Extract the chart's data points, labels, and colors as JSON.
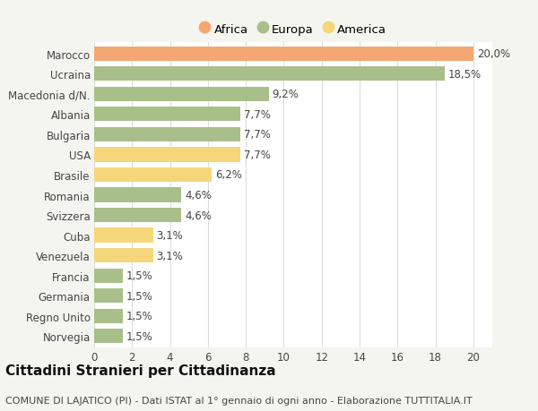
{
  "countries": [
    "Norvegia",
    "Regno Unito",
    "Germania",
    "Francia",
    "Venezuela",
    "Cuba",
    "Svizzera",
    "Romania",
    "Brasile",
    "USA",
    "Bulgaria",
    "Albania",
    "Macedonia d/N.",
    "Ucraina",
    "Marocco"
  ],
  "values": [
    1.5,
    1.5,
    1.5,
    1.5,
    3.1,
    3.1,
    4.6,
    4.6,
    6.2,
    7.7,
    7.7,
    7.7,
    9.2,
    18.5,
    20.0
  ],
  "categories": [
    "Europa",
    "Europa",
    "Europa",
    "Europa",
    "America",
    "America",
    "Europa",
    "Europa",
    "America",
    "America",
    "Europa",
    "Europa",
    "Europa",
    "Europa",
    "Africa"
  ],
  "colors": {
    "Africa": "#F4A673",
    "Europa": "#A8BF8A",
    "America": "#F5D67A"
  },
  "legend_order": [
    "Africa",
    "Europa",
    "America"
  ],
  "title": "Cittadini Stranieri per Cittadinanza",
  "subtitle": "COMUNE DI LAJATICO (PI) - Dati ISTAT al 1° gennaio di ogni anno - Elaborazione TUTTITALIA.IT",
  "xlim": [
    0,
    21
  ],
  "xticks": [
    0,
    2,
    4,
    6,
    8,
    10,
    12,
    14,
    16,
    18,
    20
  ],
  "background_color": "#f5f5f0",
  "title_fontsize": 11,
  "subtitle_fontsize": 8,
  "label_fontsize": 8.5,
  "tick_fontsize": 8.5,
  "legend_fontsize": 9.5,
  "bar_height": 0.72
}
